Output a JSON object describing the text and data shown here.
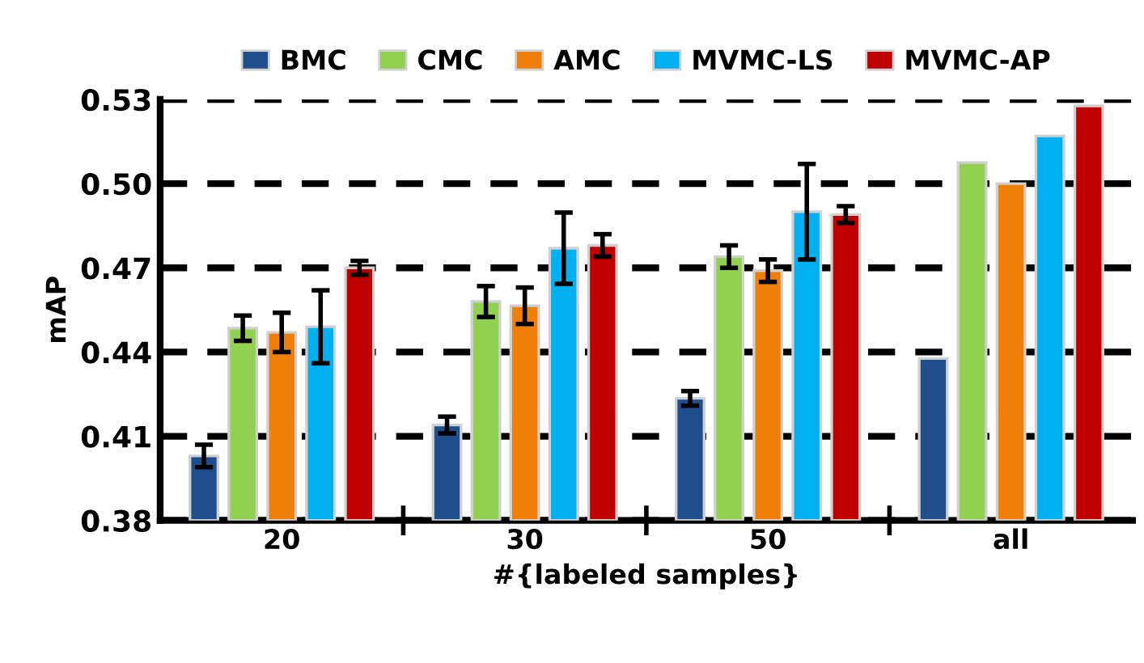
{
  "chart_data": {
    "type": "bar",
    "xlabel": "#{labeled samples}",
    "ylabel": "mAP",
    "categories": [
      "20",
      "30",
      "50",
      "all"
    ],
    "series": [
      {
        "name": "BMC",
        "color": "#1f4e8c",
        "values": [
          0.403,
          0.414,
          0.4235,
          0.4377
        ],
        "errors": [
          0.004,
          0.003,
          0.0026,
          null
        ]
      },
      {
        "name": "CMC",
        "color": "#92d050",
        "values": [
          0.4485,
          0.458,
          0.474,
          0.5075
        ],
        "errors": [
          0.0045,
          0.0055,
          0.004,
          null
        ]
      },
      {
        "name": "AMC",
        "color": "#f07f09",
        "values": [
          0.447,
          0.4565,
          0.469,
          0.5
        ],
        "errors": [
          0.007,
          0.0065,
          0.004,
          null
        ]
      },
      {
        "name": "MVMC-LS",
        "color": "#00b0f0",
        "values": [
          0.449,
          0.477,
          0.49,
          0.517
        ],
        "errors": [
          0.013,
          0.0127,
          0.017,
          null
        ]
      },
      {
        "name": "MVMC-AP",
        "color": "#c00000",
        "values": [
          0.47,
          0.478,
          0.489,
          0.5277
        ],
        "errors": [
          0.0025,
          0.004,
          0.003,
          null
        ]
      }
    ],
    "ylim": [
      0.38,
      0.53
    ],
    "yticks": [
      0.38,
      0.41,
      0.44,
      0.47,
      {
        "value": 0.5,
        "label": "0.50"
      },
      0.53
    ],
    "grid": "y",
    "legend": "top"
  }
}
